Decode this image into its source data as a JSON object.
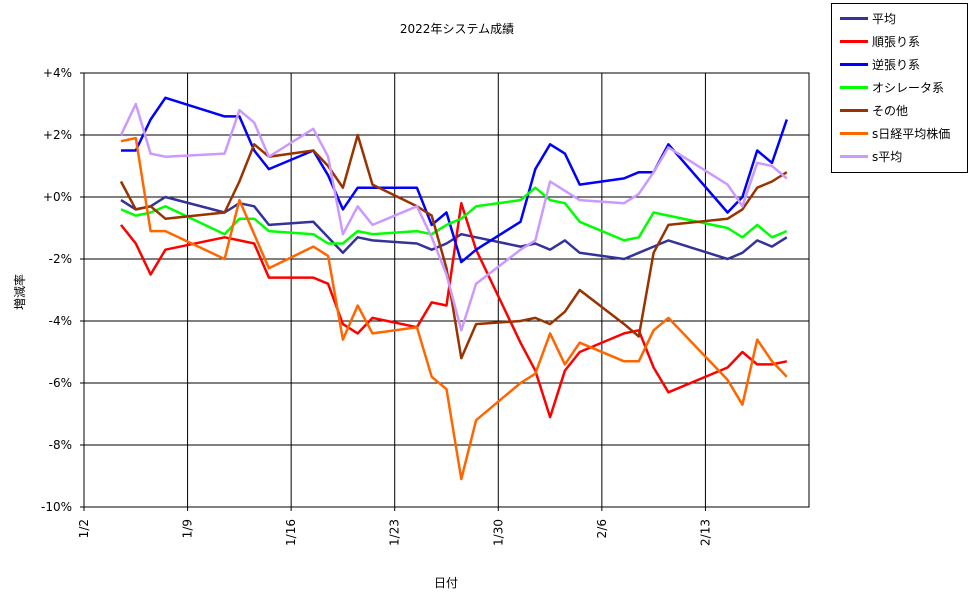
{
  "chart_data": {
    "type": "line",
    "title": "2022年システム成績",
    "xlabel": "日付",
    "ylabel": "増減率",
    "ylim": [
      -10,
      4
    ],
    "yticks": [
      "+4%",
      "+2%",
      "+0%",
      "-2%",
      "-4%",
      "-6%",
      "-8%",
      "-10%"
    ],
    "xticks": [
      "1/2",
      "1/9",
      "1/16",
      "1/23",
      "1/30",
      "2/6",
      "2/13"
    ],
    "grid": true,
    "legend_position": "top-right outside",
    "x": [
      "1/4",
      "1/5",
      "1/6",
      "1/7",
      "1/11",
      "1/12",
      "1/13",
      "1/14",
      "1/17",
      "1/18",
      "1/19",
      "1/20",
      "1/21",
      "1/24",
      "1/25",
      "1/26",
      "1/27",
      "1/28",
      "1/31",
      "2/1",
      "2/2",
      "2/3",
      "2/4",
      "2/7",
      "2/8",
      "2/9",
      "2/10",
      "2/14",
      "2/15",
      "2/16",
      "2/17",
      "2/18"
    ],
    "xpos": [
      2,
      3,
      4,
      5,
      9,
      10,
      11,
      12,
      15,
      16,
      17,
      18,
      19,
      22,
      23,
      24,
      25,
      26,
      29,
      30,
      31,
      32,
      33,
      36,
      37,
      38,
      39,
      43,
      44,
      45,
      46,
      47
    ],
    "series": [
      {
        "name": "平均",
        "color": "#333399",
        "values": [
          -0.1,
          -0.4,
          -0.3,
          0.0,
          -0.5,
          -0.2,
          -0.3,
          -0.9,
          -0.8,
          -1.3,
          -1.8,
          -1.3,
          -1.4,
          -1.5,
          -1.7,
          -1.5,
          -1.2,
          -1.3,
          -1.6,
          -1.5,
          -1.7,
          -1.4,
          -1.8,
          -2.0,
          -1.8,
          -1.6,
          -1.4,
          -2.0,
          -1.8,
          -1.4,
          -1.6,
          -1.3
        ]
      },
      {
        "name": "順張り系",
        "color": "#ff0000",
        "values": [
          -0.9,
          -1.5,
          -2.5,
          -1.7,
          -1.3,
          -1.4,
          -1.5,
          -2.6,
          -2.6,
          -2.8,
          -4.1,
          -4.4,
          -3.9,
          -4.2,
          -3.4,
          -3.5,
          -0.2,
          -1.7,
          -4.7,
          -5.6,
          -7.1,
          -5.6,
          -5.0,
          -4.4,
          -4.3,
          -5.5,
          -6.3,
          -5.5,
          -5.0,
          -5.4,
          -5.4,
          -5.3
        ]
      },
      {
        "name": "逆張り系",
        "color": "#0000ff",
        "values": [
          1.5,
          1.5,
          2.5,
          3.2,
          2.6,
          2.6,
          1.5,
          0.9,
          1.5,
          0.7,
          -0.4,
          0.3,
          0.3,
          0.3,
          -0.9,
          -0.5,
          -2.1,
          -1.7,
          -0.8,
          0.9,
          1.7,
          1.4,
          0.4,
          0.6,
          0.8,
          0.8,
          1.7,
          -0.5,
          0.0,
          1.5,
          1.1,
          2.5
        ]
      },
      {
        "name": "オシレータ系",
        "color": "#00ff00",
        "values": [
          -0.4,
          -0.6,
          -0.5,
          -0.3,
          -1.2,
          -0.7,
          -0.7,
          -1.1,
          -1.2,
          -1.5,
          -1.5,
          -1.1,
          -1.2,
          -1.1,
          -1.2,
          -0.9,
          -0.7,
          -0.3,
          -0.1,
          0.3,
          -0.1,
          -0.2,
          -0.8,
          -1.4,
          -1.3,
          -0.5,
          -0.6,
          -1.0,
          -1.3,
          -0.9,
          -1.3,
          -1.1
        ]
      },
      {
        "name": "その他",
        "color": "#993300",
        "values": [
          0.5,
          -0.4,
          -0.3,
          -0.7,
          -0.5,
          0.5,
          1.7,
          1.3,
          1.5,
          1.0,
          0.3,
          2.0,
          0.4,
          -0.3,
          -0.6,
          -2.3,
          -5.2,
          -4.1,
          -4.0,
          -3.9,
          -4.1,
          -3.7,
          -3.0,
          -4.1,
          -4.5,
          -1.8,
          -0.9,
          -0.7,
          -0.4,
          0.3,
          0.5,
          0.8
        ]
      },
      {
        "name": "s日経平均株価",
        "color": "#ff6600",
        "values": [
          1.8,
          1.9,
          -1.1,
          -1.1,
          -2.0,
          -0.1,
          -1.2,
          -2.3,
          -1.6,
          -1.9,
          -4.6,
          -3.5,
          -4.4,
          -4.2,
          -5.8,
          -6.2,
          -9.1,
          -7.2,
          -6.0,
          -5.7,
          -4.4,
          -5.4,
          -4.7,
          -5.3,
          -5.3,
          -4.3,
          -3.9,
          -5.9,
          -6.7,
          -4.6,
          -5.3,
          -5.8
        ]
      },
      {
        "name": "s平均",
        "color": "#cc99ff",
        "values": [
          2.0,
          3.0,
          1.4,
          1.3,
          1.4,
          2.8,
          2.4,
          1.3,
          2.2,
          1.3,
          -1.2,
          -0.3,
          -0.9,
          -0.3,
          -1.3,
          -2.5,
          -4.3,
          -2.8,
          -1.7,
          -1.4,
          0.5,
          0.2,
          -0.1,
          -0.2,
          0.1,
          0.8,
          1.6,
          0.4,
          -0.3,
          1.1,
          1.0,
          0.6
        ]
      }
    ]
  }
}
